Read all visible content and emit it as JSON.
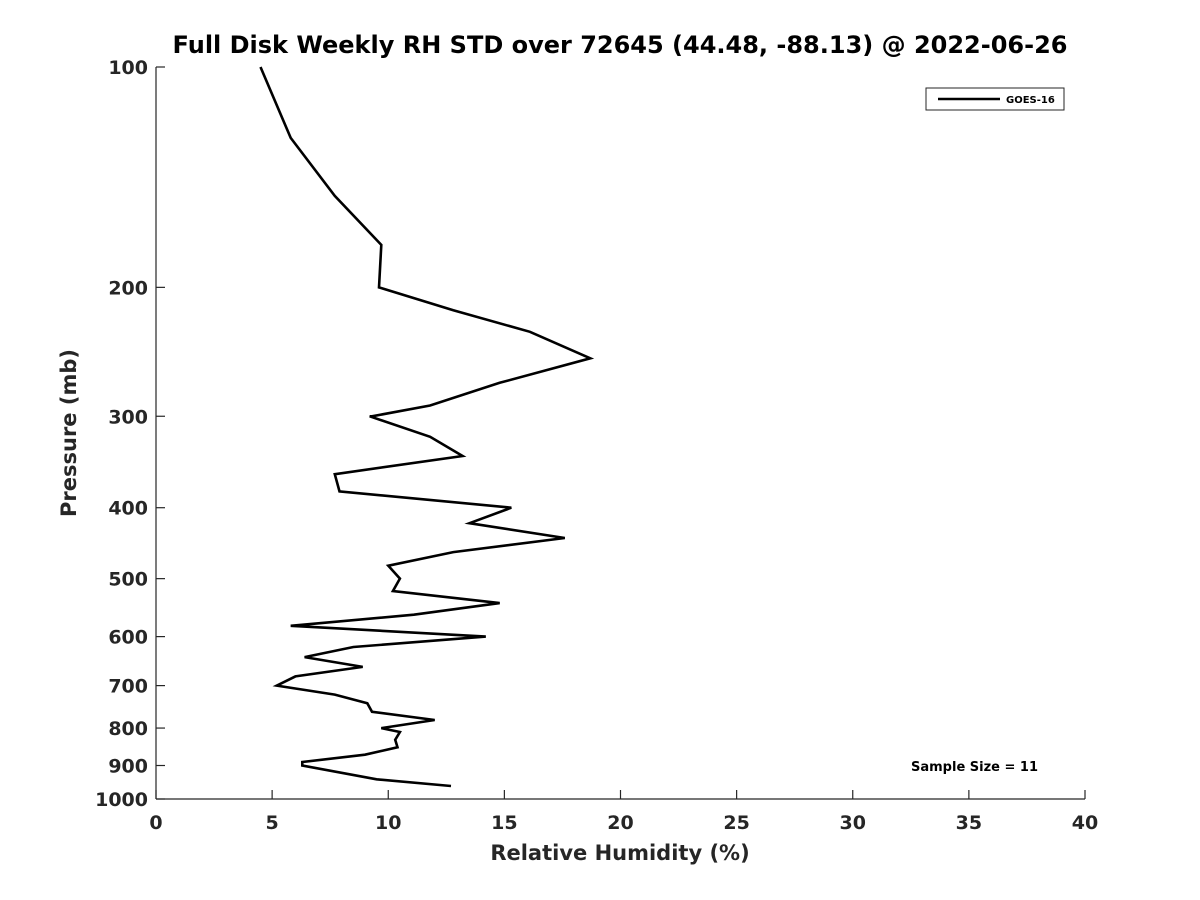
{
  "chart_data": {
    "type": "line",
    "title": "Full Disk Weekly RH STD over 72645 (44.48, -88.13) @ 2022-06-26",
    "xlabel": "Relative Humidity (%)",
    "ylabel": "Pressure (mb)",
    "xlim": [
      0,
      40
    ],
    "ylim": [
      100,
      1000
    ],
    "y_scale": "log",
    "y_reversed": true,
    "grid": false,
    "legend_position": "top-right",
    "x_ticks": [
      "0",
      "5",
      "10",
      "15",
      "20",
      "25",
      "30",
      "35",
      "40"
    ],
    "y_ticks": [
      "100",
      "200",
      "300",
      "400",
      "500",
      "600",
      "700",
      "800",
      "900",
      "1000"
    ],
    "annotation": "Sample Size = 11",
    "series": [
      {
        "name": "GOES-16",
        "color": "#000000",
        "points": [
          [
            4.5,
            100
          ],
          [
            5.8,
            125
          ],
          [
            7.7,
            150
          ],
          [
            9.7,
            175
          ],
          [
            9.7,
            175
          ],
          [
            9.6,
            200
          ],
          [
            12.8,
            215
          ],
          [
            16.1,
            230
          ],
          [
            18.7,
            250
          ],
          [
            14.8,
            270
          ],
          [
            11.8,
            290
          ],
          [
            9.3,
            300
          ],
          [
            9.2,
            300
          ],
          [
            11.8,
            320
          ],
          [
            13.2,
            340
          ],
          [
            7.7,
            360
          ],
          [
            7.9,
            380
          ],
          [
            15.3,
            400
          ],
          [
            13.5,
            420
          ],
          [
            17.6,
            440
          ],
          [
            12.8,
            460
          ],
          [
            10.0,
            480
          ],
          [
            10.5,
            500
          ],
          [
            10.2,
            520
          ],
          [
            14.8,
            540
          ],
          [
            11.1,
            560
          ],
          [
            5.8,
            580
          ],
          [
            14.2,
            600
          ],
          [
            8.5,
            620
          ],
          [
            6.4,
            640
          ],
          [
            8.9,
            660
          ],
          [
            6.0,
            680
          ],
          [
            5.2,
            700
          ],
          [
            7.7,
            720
          ],
          [
            9.1,
            740
          ],
          [
            9.3,
            760
          ],
          [
            12.0,
            780
          ],
          [
            9.7,
            800
          ],
          [
            10.5,
            810
          ],
          [
            10.3,
            830
          ],
          [
            10.4,
            850
          ],
          [
            9.0,
            870
          ],
          [
            6.3,
            890
          ],
          [
            6.3,
            900
          ],
          [
            9.5,
            940
          ],
          [
            12.7,
            960
          ]
        ]
      }
    ]
  }
}
